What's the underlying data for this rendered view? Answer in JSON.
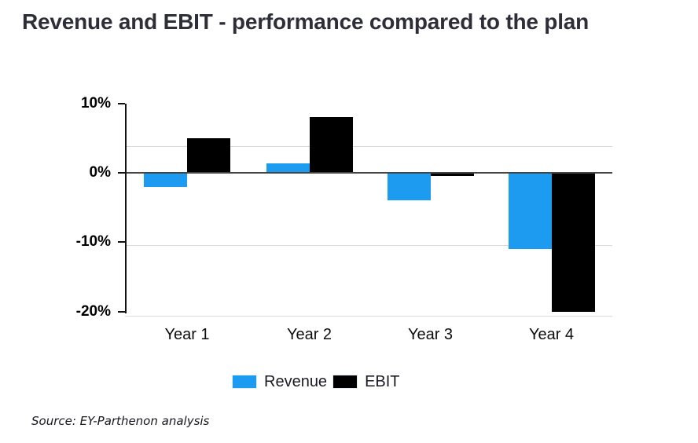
{
  "title": "Revenue and EBIT - performance compared to the plan",
  "source": "Source: EY-Parthenon analysis",
  "colors": {
    "revenue_blue": "#1C9BF0",
    "ebit_black": "#000000",
    "title_dark": "#2e2e38",
    "gridline_gray": "#d9d9d9",
    "zero_line_gray": "#454545"
  },
  "legend": [
    {
      "label": "Revenue",
      "color": "#1C9BF0"
    },
    {
      "label": "EBIT",
      "color": "#000000"
    }
  ],
  "chart_data": {
    "type": "bar",
    "title": "Revenue and EBIT - performance compared to the plan",
    "categories": [
      "Year 1",
      "Year 2",
      "Year 3",
      "Year 4"
    ],
    "series": [
      {
        "name": "Revenue",
        "color": "#1C9BF0",
        "values": [
          -2,
          1.4,
          -4,
          -11
        ]
      },
      {
        "name": "EBIT",
        "color": "#000000",
        "values": [
          5,
          8,
          -0.5,
          -20
        ]
      }
    ],
    "unit": "%",
    "xlabel": "",
    "ylabel": "",
    "y_ticks": [
      "10%",
      "0%",
      "-10%",
      "-20%"
    ],
    "y_tick_values": [
      10,
      0,
      -10,
      -20
    ],
    "ylim": [
      -21,
      11
    ],
    "grid": true,
    "legend_position": "bottom",
    "source": "Source: EY-Parthenon analysis"
  }
}
